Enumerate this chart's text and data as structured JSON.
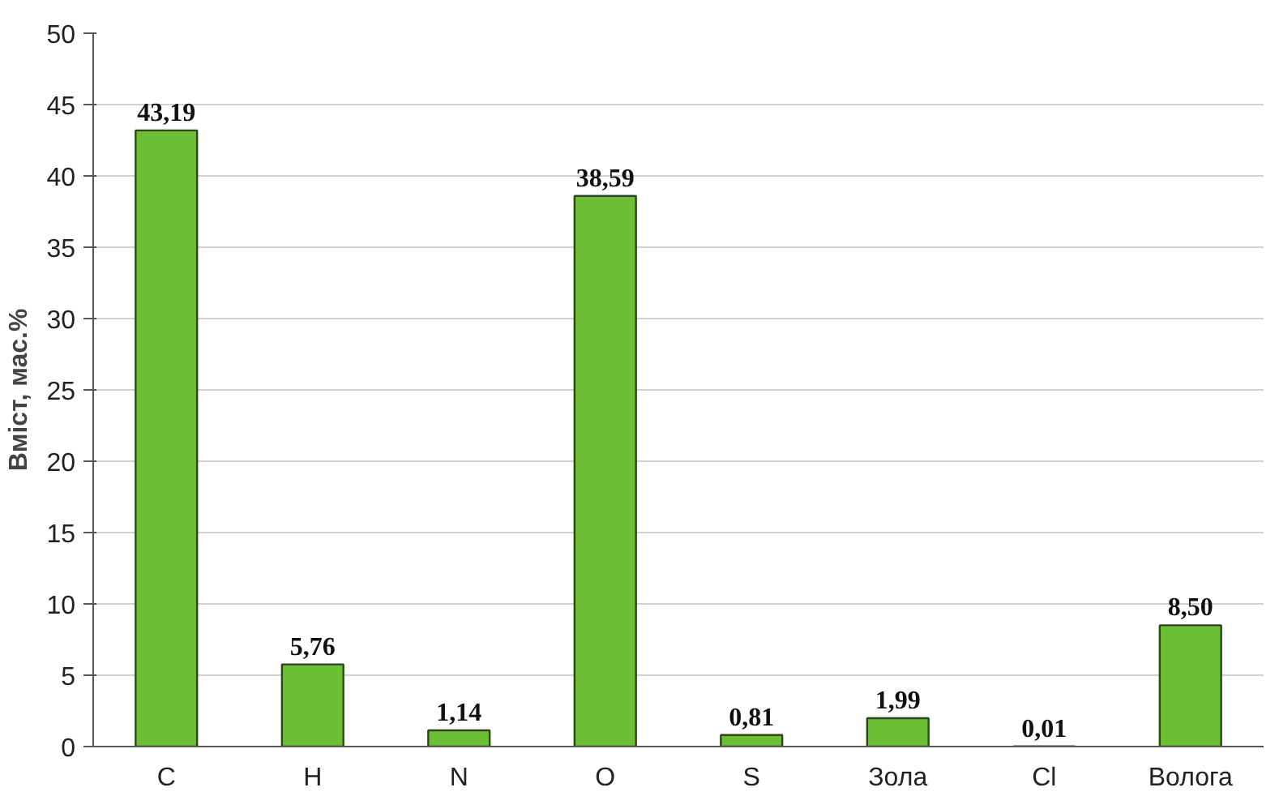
{
  "chart_data": {
    "type": "bar",
    "ylabel": "Вміст, мас.%",
    "categories": [
      "C",
      "H",
      "N",
      "O",
      "S",
      "Зола",
      "Cl",
      "Волога"
    ],
    "values": [
      43.19,
      5.76,
      1.14,
      38.59,
      0.81,
      1.99,
      0.01,
      8.5
    ],
    "value_labels": [
      "43,19",
      "5,76",
      "1,14",
      "38,59",
      "0,81",
      "1,99",
      "0,01",
      "8,50"
    ],
    "color": "#6cbf35",
    "ylim": [
      0,
      50
    ],
    "yticks": [
      0,
      5,
      10,
      15,
      20,
      25,
      30,
      35,
      40,
      45,
      50
    ],
    "grid": "y"
  }
}
